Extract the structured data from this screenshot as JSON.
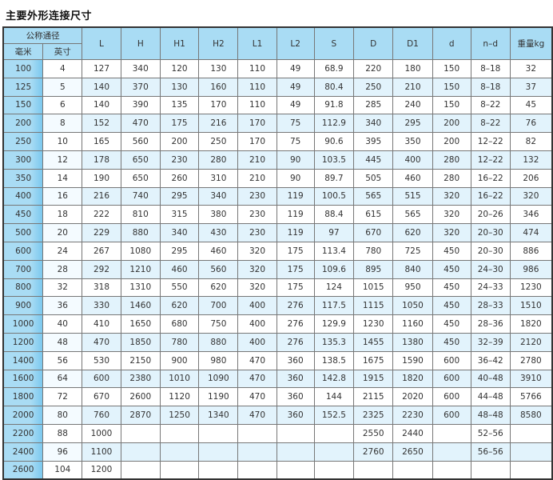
{
  "title": "主要外形连接尺寸",
  "table": {
    "group_header": "公称通径",
    "sub_headers": [
      "毫米",
      "英寸"
    ],
    "columns": [
      "L",
      "H",
      "H1",
      "H2",
      "L1",
      "L2",
      "S",
      "D",
      "D1",
      "d",
      "n-d",
      "重量kg"
    ],
    "rows": [
      [
        "100",
        "4",
        "127",
        "340",
        "120",
        "130",
        "110",
        "49",
        "68.9",
        "220",
        "180",
        "150",
        "8-18",
        "32"
      ],
      [
        "125",
        "5",
        "140",
        "370",
        "130",
        "160",
        "110",
        "49",
        "80.4",
        "250",
        "210",
        "150",
        "8-18",
        "37"
      ],
      [
        "150",
        "6",
        "140",
        "390",
        "135",
        "170",
        "110",
        "49",
        "91.8",
        "285",
        "240",
        "150",
        "8-22",
        "45"
      ],
      [
        "200",
        "8",
        "152",
        "470",
        "175",
        "216",
        "170",
        "75",
        "112.9",
        "340",
        "295",
        "200",
        "8-22",
        "76"
      ],
      [
        "250",
        "10",
        "165",
        "560",
        "200",
        "250",
        "170",
        "75",
        "90.6",
        "395",
        "350",
        "200",
        "12-22",
        "82"
      ],
      [
        "300",
        "12",
        "178",
        "650",
        "230",
        "280",
        "210",
        "90",
        "103.5",
        "445",
        "400",
        "280",
        "12-22",
        "132"
      ],
      [
        "350",
        "14",
        "190",
        "650",
        "260",
        "310",
        "210",
        "90",
        "89.7",
        "505",
        "460",
        "280",
        "16-22",
        "206"
      ],
      [
        "400",
        "16",
        "216",
        "740",
        "295",
        "340",
        "230",
        "119",
        "100.5",
        "565",
        "515",
        "320",
        "16-22",
        "320"
      ],
      [
        "450",
        "18",
        "222",
        "810",
        "315",
        "380",
        "230",
        "119",
        "88.4",
        "615",
        "565",
        "320",
        "20-26",
        "346"
      ],
      [
        "500",
        "20",
        "229",
        "880",
        "340",
        "430",
        "230",
        "119",
        "97",
        "670",
        "620",
        "320",
        "20-30",
        "474"
      ],
      [
        "600",
        "24",
        "267",
        "1080",
        "295",
        "460",
        "320",
        "175",
        "113.4",
        "780",
        "725",
        "450",
        "20-30",
        "886"
      ],
      [
        "700",
        "28",
        "292",
        "1210",
        "460",
        "560",
        "320",
        "175",
        "109.6",
        "895",
        "840",
        "450",
        "24-30",
        "986"
      ],
      [
        "800",
        "32",
        "318",
        "1310",
        "550",
        "620",
        "320",
        "175",
        "124",
        "1015",
        "950",
        "450",
        "24-33",
        "1230"
      ],
      [
        "900",
        "36",
        "330",
        "1460",
        "620",
        "700",
        "400",
        "276",
        "117.5",
        "1115",
        "1050",
        "450",
        "28-33",
        "1510"
      ],
      [
        "1000",
        "40",
        "410",
        "1650",
        "680",
        "750",
        "400",
        "276",
        "129.9",
        "1230",
        "1160",
        "450",
        "28-36",
        "1820"
      ],
      [
        "1200",
        "48",
        "470",
        "1850",
        "780",
        "880",
        "400",
        "276",
        "135.3",
        "1455",
        "1380",
        "450",
        "32-39",
        "2120"
      ],
      [
        "1400",
        "56",
        "530",
        "2150",
        "900",
        "980",
        "470",
        "360",
        "138.5",
        "1675",
        "1590",
        "600",
        "36-42",
        "2780"
      ],
      [
        "1600",
        "64",
        "600",
        "2380",
        "1010",
        "1090",
        "470",
        "360",
        "142.8",
        "1915",
        "1820",
        "600",
        "40-48",
        "3910"
      ],
      [
        "1800",
        "72",
        "670",
        "2600",
        "1120",
        "1190",
        "470",
        "360",
        "144",
        "2115",
        "2020",
        "600",
        "44-48",
        "5766"
      ],
      [
        "2000",
        "80",
        "760",
        "2870",
        "1250",
        "1340",
        "470",
        "360",
        "152.5",
        "2325",
        "2230",
        "600",
        "48-48",
        "8580"
      ],
      [
        "2200",
        "88",
        "1000",
        "",
        "",
        "",
        "",
        "",
        "",
        "2550",
        "2440",
        "",
        "52-56",
        ""
      ],
      [
        "2400",
        "96",
        "1100",
        "",
        "",
        "",
        "",
        "",
        "",
        "2760",
        "2650",
        "",
        "56-56",
        ""
      ],
      [
        "2600",
        "104",
        "1200",
        "",
        "",
        "",
        "",
        "",
        "",
        "",
        "",
        "",
        "",
        ""
      ]
    ]
  }
}
